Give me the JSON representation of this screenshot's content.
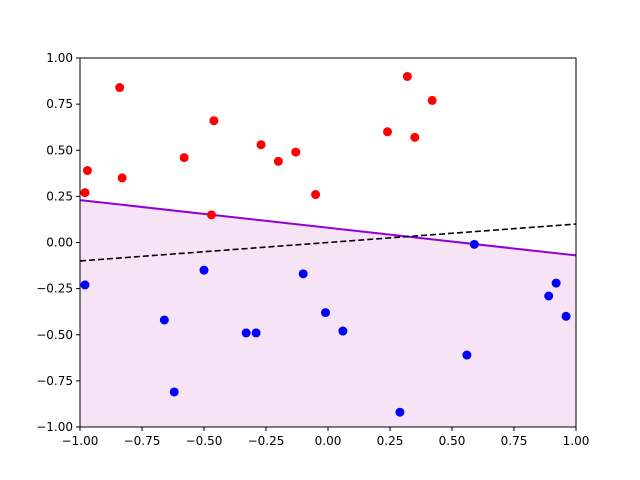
{
  "chart_data": {
    "type": "scatter",
    "xlim": [
      -1.0,
      1.0
    ],
    "ylim": [
      -1.0,
      1.0
    ],
    "x_ticks": [
      "−1.00",
      "−0.75",
      "−0.50",
      "−0.25",
      "0.00",
      "0.25",
      "0.50",
      "0.75",
      "1.00"
    ],
    "x_tick_values": [
      -1.0,
      -0.75,
      -0.5,
      -0.25,
      0.0,
      0.25,
      0.5,
      0.75,
      1.0
    ],
    "y_ticks": [
      "−1.00",
      "−0.75",
      "−0.50",
      "−0.25",
      "0.00",
      "0.25",
      "0.50",
      "0.75",
      "1.00"
    ],
    "y_tick_values": [
      -1.0,
      -0.75,
      -0.5,
      -0.25,
      0.0,
      0.25,
      0.5,
      0.75,
      1.0
    ],
    "grid": false,
    "colors": {
      "red_points": "#ff0000",
      "blue_points": "#0000ff",
      "boundary_line": "#9400d3",
      "region_fill": "#f7e3f6",
      "reference_line": "#000000"
    },
    "series": [
      {
        "color": "#ff0000",
        "points": [
          [
            -0.98,
            0.27
          ],
          [
            -0.97,
            0.39
          ],
          [
            -0.84,
            0.84
          ],
          [
            -0.83,
            0.35
          ],
          [
            -0.58,
            0.46
          ],
          [
            -0.46,
            0.66
          ],
          [
            -0.47,
            0.15
          ],
          [
            -0.27,
            0.53
          ],
          [
            -0.2,
            0.44
          ],
          [
            -0.13,
            0.49
          ],
          [
            -0.05,
            0.26
          ],
          [
            0.24,
            0.6
          ],
          [
            0.32,
            0.9
          ],
          [
            0.35,
            0.57
          ],
          [
            0.42,
            0.77
          ]
        ]
      },
      {
        "color": "#0000ff",
        "points": [
          [
            -0.98,
            -0.23
          ],
          [
            -0.66,
            -0.42
          ],
          [
            -0.62,
            -0.81
          ],
          [
            -0.5,
            -0.15
          ],
          [
            -0.33,
            -0.49
          ],
          [
            -0.29,
            -0.49
          ],
          [
            -0.1,
            -0.17
          ],
          [
            -0.01,
            -0.38
          ],
          [
            0.06,
            -0.48
          ],
          [
            0.29,
            -0.92
          ],
          [
            0.56,
            -0.61
          ],
          [
            0.59,
            -0.01
          ],
          [
            0.89,
            -0.29
          ],
          [
            0.92,
            -0.22
          ],
          [
            0.96,
            -0.4
          ]
        ]
      }
    ],
    "lines": [
      {
        "style": "solid",
        "color": "#9400d3",
        "points": [
          [
            -1.0,
            0.23
          ],
          [
            1.0,
            -0.07
          ]
        ],
        "fill_below": true
      },
      {
        "style": "dashed",
        "color": "#000000",
        "points": [
          [
            -1.0,
            -0.1
          ],
          [
            1.0,
            0.1
          ]
        ]
      }
    ]
  }
}
